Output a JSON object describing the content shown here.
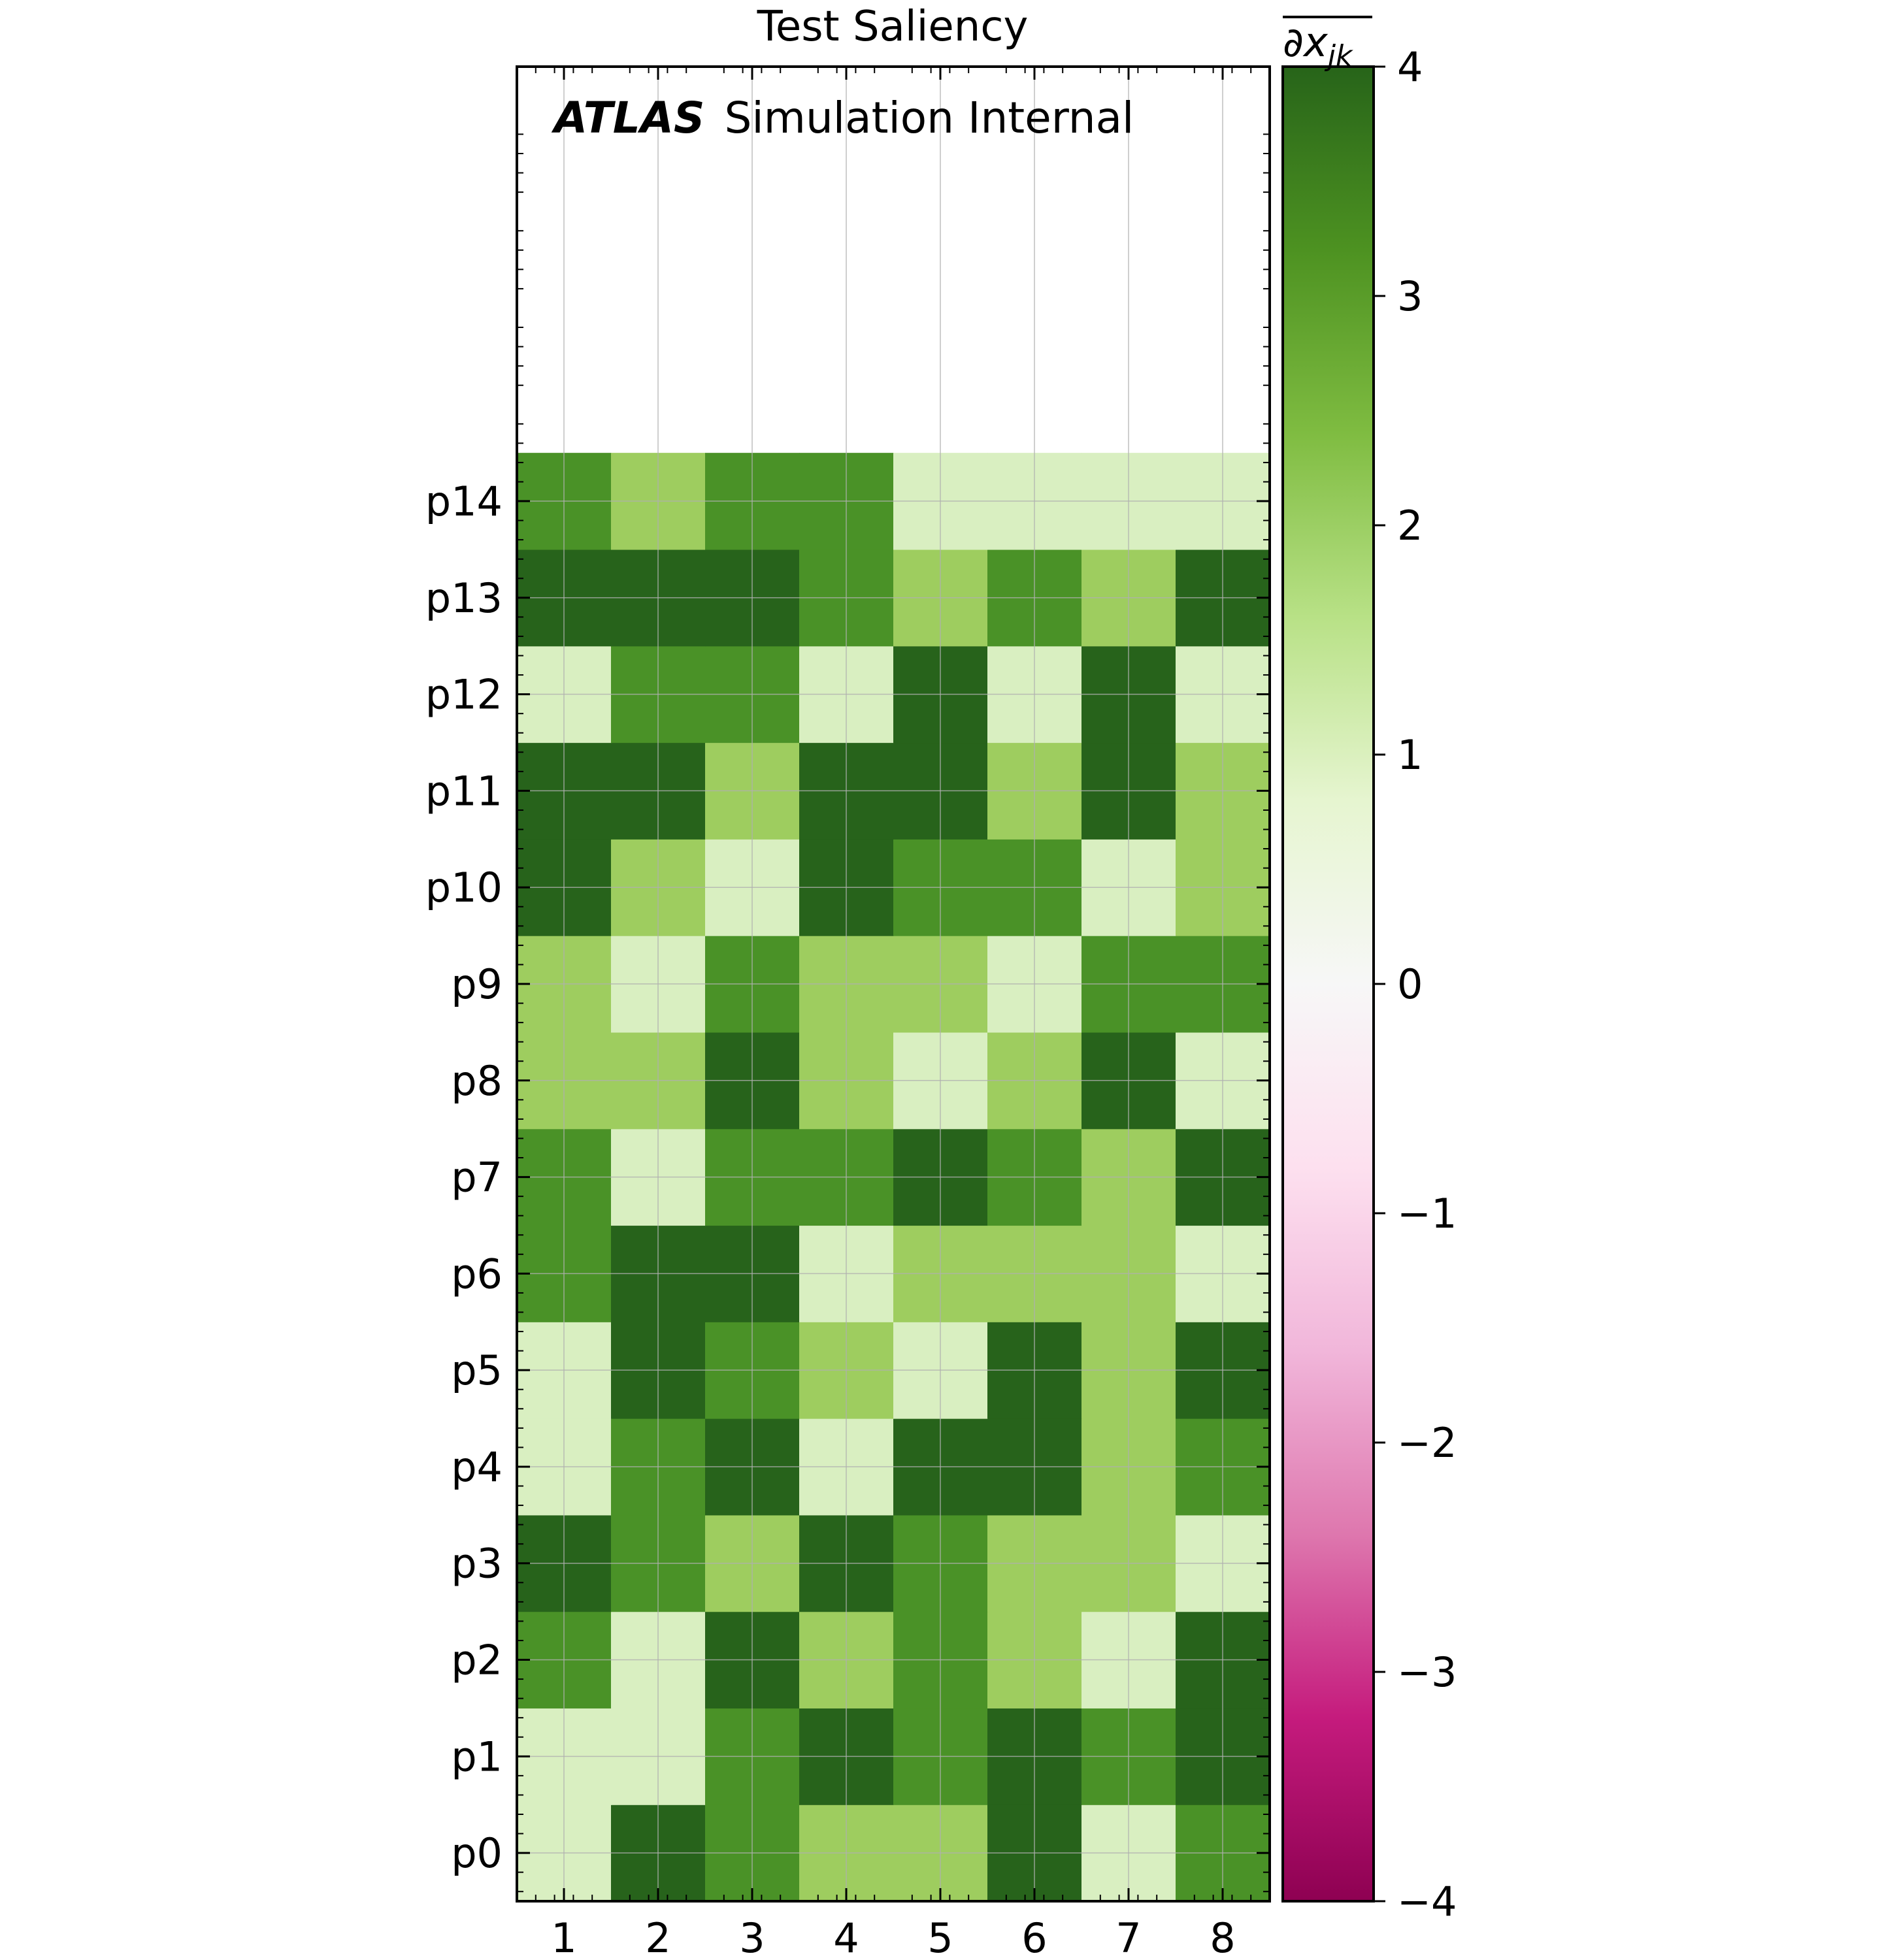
{
  "chart_data": {
    "type": "heatmap",
    "title": "Test Saliency",
    "annotation": {
      "bold": "ATLAS",
      "normal": "Simulation Internal"
    },
    "colorbar_label_fragment": "∂x",
    "colorbar_label_subscript": "jk",
    "x": [
      "1",
      "2",
      "3",
      "4",
      "5",
      "6",
      "7",
      "8"
    ],
    "y": [
      "p0",
      "p1",
      "p2",
      "p3",
      "p4",
      "p5",
      "p6",
      "p7",
      "p8",
      "p9",
      "p10",
      "p11",
      "p12",
      "p13",
      "p14"
    ],
    "y_range_extends_to": 19,
    "values": [
      [
        1,
        4,
        3,
        2,
        2,
        4,
        1,
        3
      ],
      [
        1,
        1,
        3,
        4,
        3,
        4,
        3,
        4
      ],
      [
        3,
        1,
        4,
        2,
        3,
        2,
        1,
        4
      ],
      [
        4,
        3,
        2,
        4,
        3,
        2,
        2,
        1
      ],
      [
        1,
        3,
        4,
        1,
        4,
        4,
        2,
        3
      ],
      [
        1,
        4,
        3,
        2,
        1,
        4,
        2,
        4
      ],
      [
        3,
        4,
        4,
        1,
        2,
        2,
        2,
        1
      ],
      [
        3,
        1,
        3,
        3,
        4,
        3,
        2,
        4
      ],
      [
        2,
        2,
        4,
        2,
        1,
        2,
        4,
        1
      ],
      [
        2,
        1,
        3,
        2,
        2,
        1,
        3,
        3
      ],
      [
        4,
        2,
        1,
        4,
        3,
        3,
        1,
        2
      ],
      [
        4,
        4,
        2,
        4,
        4,
        2,
        4,
        2
      ],
      [
        1,
        3,
        3,
        1,
        4,
        1,
        4,
        1
      ],
      [
        4,
        4,
        4,
        3,
        2,
        3,
        2,
        4
      ],
      [
        3,
        2,
        3,
        3,
        1,
        1,
        1,
        1
      ]
    ],
    "colormap": "PiYG",
    "vmin": -4,
    "vmax": 4,
    "colorbar_ticks": [
      "4",
      "3",
      "2",
      "1",
      "0",
      "−1",
      "−2",
      "−3",
      "−4"
    ],
    "grid": true
  }
}
